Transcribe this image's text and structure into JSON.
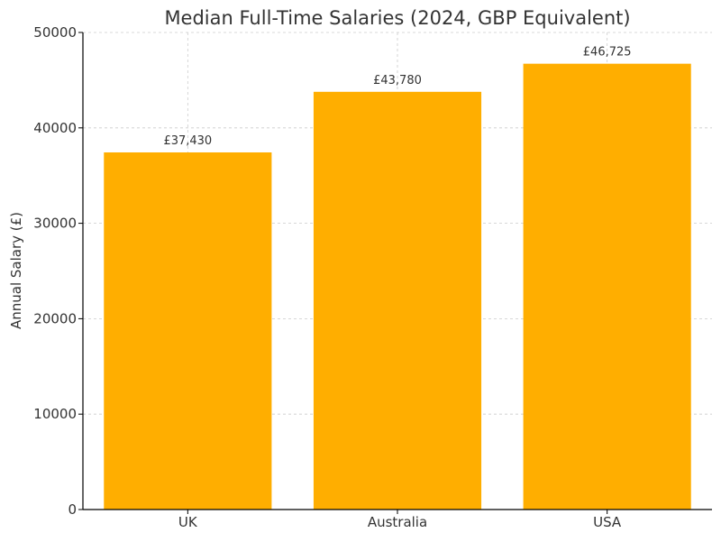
{
  "chart_data": {
    "type": "bar",
    "title": "Median Full-Time Salaries (2024, GBP Equivalent)",
    "xlabel": "",
    "ylabel": "Annual Salary (£)",
    "categories": [
      "UK",
      "Australia",
      "USA"
    ],
    "values": [
      37430,
      43780,
      46725
    ],
    "value_labels": [
      "£37,430",
      "£43,780",
      "£46,725"
    ],
    "ylim": [
      0,
      50000
    ],
    "yticks": [
      0,
      10000,
      20000,
      30000,
      40000,
      50000
    ],
    "ytick_labels": [
      "0",
      "10000",
      "20000",
      "30000",
      "40000",
      "50000"
    ],
    "grid": true,
    "colors": {
      "bar": "#FFAE00",
      "grid": "#cccccc",
      "axis": "#000000",
      "text": "#333333"
    }
  }
}
